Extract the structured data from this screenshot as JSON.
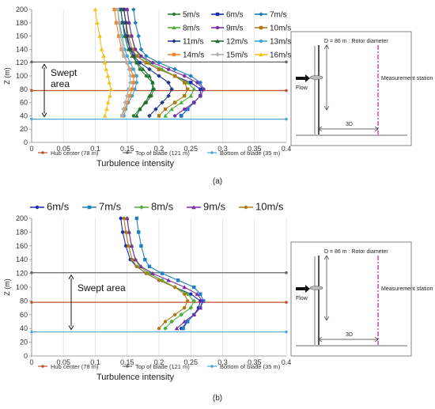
{
  "colors": {
    "5m/s": "#2e7d32",
    "6m/s": "#1a2fb0",
    "7m/s": "#1e7fc0",
    "8m/s": "#4caf3c",
    "9m/s": "#7b2fa6",
    "10m/s": "#b07b14",
    "11m/s": "#243a8e",
    "12m/s": "#1f6e2e",
    "13m/s": "#3aa6d8",
    "14m/s": "#f0862c",
    "15m/s": "#b0b0b0",
    "16m/s": "#f2c21a",
    "hub": "#c0502a",
    "top": "#666666",
    "bottom": "#4fa8d8"
  },
  "chart_data": [
    {
      "type": "line",
      "caption": "(a)",
      "xlabel": "Turbulence intensity",
      "ylabel": "Z (m)",
      "xlim": [
        0,
        0.4
      ],
      "ylim": [
        0,
        200
      ],
      "xticks": [
        "0",
        "0.05",
        "0.1",
        "0.15",
        "0.2",
        "0.25",
        "0.3",
        "0.35",
        "0.4"
      ],
      "yticks": [
        "0",
        "20",
        "40",
        "60",
        "80",
        "100",
        "120",
        "140",
        "160",
        "180",
        "200"
      ],
      "grid": "vertical",
      "heights": [
        200,
        180,
        160,
        140,
        130,
        120,
        110,
        100,
        90,
        80,
        70,
        60,
        50,
        40
      ],
      "series": [
        {
          "name": "5m/s",
          "values": [
            0.145,
            0.148,
            0.15,
            0.155,
            0.16,
            0.165,
            0.17,
            0.18,
            0.19,
            0.192,
            0.188,
            0.18,
            0.17,
            0.16
          ]
        },
        {
          "name": "6m/s",
          "values": [
            0.14,
            0.143,
            0.148,
            0.155,
            0.165,
            0.18,
            0.2,
            0.225,
            0.25,
            0.265,
            0.265,
            0.255,
            0.245,
            0.235
          ]
        },
        {
          "name": "7m/s",
          "values": [
            0.16,
            0.163,
            0.168,
            0.172,
            0.18,
            0.2,
            0.225,
            0.25,
            0.265,
            0.27,
            0.265,
            0.255,
            0.245,
            0.235
          ]
        },
        {
          "name": "8m/s",
          "values": [
            0.15,
            0.153,
            0.157,
            0.162,
            0.17,
            0.185,
            0.205,
            0.225,
            0.245,
            0.255,
            0.25,
            0.235,
            0.22,
            0.21
          ]
        },
        {
          "name": "9m/s",
          "values": [
            0.15,
            0.153,
            0.157,
            0.163,
            0.172,
            0.19,
            0.215,
            0.24,
            0.26,
            0.27,
            0.265,
            0.255,
            0.24,
            0.225
          ]
        },
        {
          "name": "10m/s",
          "values": [
            0.145,
            0.148,
            0.152,
            0.158,
            0.165,
            0.18,
            0.2,
            0.225,
            0.24,
            0.245,
            0.24,
            0.225,
            0.21,
            0.2
          ]
        },
        {
          "name": "11m/s",
          "values": [
            0.145,
            0.148,
            0.15,
            0.155,
            0.16,
            0.17,
            0.185,
            0.2,
            0.215,
            0.22,
            0.215,
            0.205,
            0.195,
            0.185
          ]
        },
        {
          "name": "12m/s",
          "values": [
            0.14,
            0.143,
            0.146,
            0.152,
            0.158,
            0.165,
            0.175,
            0.185,
            0.19,
            0.19,
            0.185,
            0.178,
            0.17,
            0.165
          ]
        },
        {
          "name": "13m/s",
          "values": [
            0.135,
            0.138,
            0.142,
            0.146,
            0.15,
            0.155,
            0.16,
            0.165,
            0.165,
            0.162,
            0.158,
            0.152,
            0.148,
            0.145
          ]
        },
        {
          "name": "14m/s",
          "values": [
            0.13,
            0.133,
            0.137,
            0.141,
            0.145,
            0.15,
            0.155,
            0.16,
            0.16,
            0.158,
            0.154,
            0.15,
            0.146,
            0.142
          ]
        },
        {
          "name": "15m/s",
          "values": [
            0.135,
            0.137,
            0.14,
            0.143,
            0.146,
            0.15,
            0.153,
            0.155,
            0.155,
            0.152,
            0.15,
            0.147,
            0.144,
            0.142
          ]
        },
        {
          "name": "16m/s",
          "values": [
            0.1,
            0.103,
            0.107,
            0.11,
            0.113,
            0.115,
            0.117,
            0.12,
            0.122,
            0.125,
            0.123,
            0.12,
            0.118,
            0.115
          ]
        }
      ],
      "hlines": [
        {
          "name": "Hub center (78 m)",
          "y": 78,
          "key": "hub"
        },
        {
          "name": "Top of blade (121 m)",
          "y": 121,
          "key": "top"
        },
        {
          "name": "Bottom of blade (35 m)",
          "y": 35,
          "key": "bottom"
        }
      ],
      "annotation": "Swept area",
      "legend_placement": "top-right"
    },
    {
      "type": "line",
      "caption": "(b)",
      "xlabel": "Turbulence intensity",
      "ylabel": "Z (m)",
      "xlim": [
        0,
        0.4
      ],
      "ylim": [
        0,
        200
      ],
      "xticks": [
        "0",
        "0.05",
        "0.1",
        "0.15",
        "0.2",
        "0.25",
        "0.3",
        "0.35",
        "0.4"
      ],
      "yticks": [
        "0",
        "20",
        "40",
        "60",
        "80",
        "100",
        "120",
        "140",
        "160",
        "180",
        "200"
      ],
      "grid": "vertical",
      "heights": [
        200,
        180,
        160,
        140,
        130,
        120,
        110,
        100,
        90,
        80,
        70,
        60,
        50,
        40
      ],
      "series": [
        {
          "name": "6m/s",
          "values": [
            0.14,
            0.143,
            0.148,
            0.155,
            0.165,
            0.18,
            0.2,
            0.225,
            0.25,
            0.265,
            0.262,
            0.255,
            0.245,
            0.235
          ]
        },
        {
          "name": "7m/s",
          "values": [
            0.165,
            0.168,
            0.172,
            0.178,
            0.185,
            0.205,
            0.23,
            0.255,
            0.265,
            0.27,
            0.265,
            0.255,
            0.245,
            0.238
          ]
        },
        {
          "name": "8m/s",
          "values": [
            0.15,
            0.153,
            0.157,
            0.163,
            0.17,
            0.185,
            0.205,
            0.225,
            0.245,
            0.255,
            0.25,
            0.235,
            0.22,
            0.21
          ]
        },
        {
          "name": "9m/s",
          "values": [
            0.15,
            0.153,
            0.157,
            0.163,
            0.172,
            0.19,
            0.215,
            0.24,
            0.26,
            0.268,
            0.265,
            0.255,
            0.24,
            0.228
          ]
        },
        {
          "name": "10m/s",
          "values": [
            0.145,
            0.148,
            0.152,
            0.158,
            0.165,
            0.18,
            0.2,
            0.225,
            0.24,
            0.245,
            0.24,
            0.225,
            0.21,
            0.2
          ]
        }
      ],
      "hlines": [
        {
          "name": "Hub center (78 m)",
          "y": 78,
          "key": "hub"
        },
        {
          "name": "Top of blade (121 m)",
          "y": 121,
          "key": "top"
        },
        {
          "name": "Bottom of blade (35 m)",
          "y": 35,
          "key": "bottom"
        }
      ],
      "annotation": "Swept area",
      "legend_placement": "top"
    }
  ],
  "diagram": {
    "rotor_label": "D = 86 m : Rotor diameter",
    "flow_label": "Flow",
    "station_label": "Measurement station",
    "distance_label": "3D"
  }
}
